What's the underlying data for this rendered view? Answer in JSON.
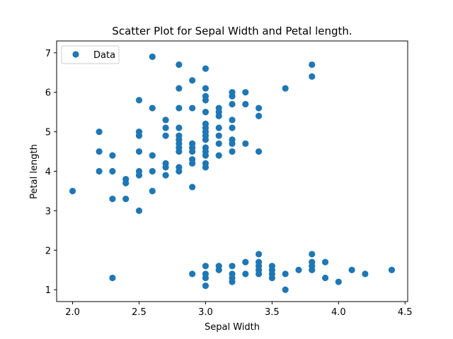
{
  "chart_data": {
    "type": "scatter",
    "title": "Scatter Plot for Sepal Width and Petal length.",
    "xlabel": "Sepal Width",
    "ylabel": "Petal length",
    "xlim": [
      1.88,
      4.52
    ],
    "ylim": [
      0.7,
      7.3
    ],
    "xticks": [
      2.0,
      2.5,
      3.0,
      3.5,
      4.0,
      4.5
    ],
    "xtick_labels": [
      "2.0",
      "2.5",
      "3.0",
      "3.5",
      "4.0",
      "4.5"
    ],
    "yticks": [
      1,
      2,
      3,
      4,
      5,
      6,
      7
    ],
    "ytick_labels": [
      "1",
      "2",
      "3",
      "4",
      "5",
      "6",
      "7"
    ],
    "grid": false,
    "legend": {
      "position": "top-left",
      "entries": [
        "Data"
      ]
    },
    "marker_color": "#1f77b4",
    "series": [
      {
        "name": "Data",
        "points": [
          [
            2.0,
            3.5
          ],
          [
            2.2,
            5.0
          ],
          [
            2.2,
            4.5
          ],
          [
            2.2,
            4.0
          ],
          [
            2.3,
            4.4
          ],
          [
            2.3,
            4.0
          ],
          [
            2.3,
            3.3
          ],
          [
            2.3,
            1.3
          ],
          [
            2.4,
            3.8
          ],
          [
            2.4,
            3.7
          ],
          [
            2.4,
            3.3
          ],
          [
            2.5,
            5.8
          ],
          [
            2.5,
            5.0
          ],
          [
            2.5,
            4.9
          ],
          [
            2.5,
            4.5
          ],
          [
            2.5,
            4.0
          ],
          [
            2.5,
            3.9
          ],
          [
            2.5,
            3.0
          ],
          [
            2.6,
            6.9
          ],
          [
            2.6,
            5.6
          ],
          [
            2.6,
            4.4
          ],
          [
            2.6,
            4.0
          ],
          [
            2.6,
            3.5
          ],
          [
            2.7,
            5.3
          ],
          [
            2.7,
            5.1
          ],
          [
            2.7,
            4.9
          ],
          [
            2.7,
            4.2
          ],
          [
            2.7,
            4.1
          ],
          [
            2.7,
            3.9
          ],
          [
            2.8,
            6.7
          ],
          [
            2.8,
            6.1
          ],
          [
            2.8,
            5.6
          ],
          [
            2.8,
            5.1
          ],
          [
            2.8,
            4.9
          ],
          [
            2.8,
            4.8
          ],
          [
            2.8,
            4.7
          ],
          [
            2.8,
            4.6
          ],
          [
            2.8,
            4.5
          ],
          [
            2.8,
            4.1
          ],
          [
            2.8,
            4.0
          ],
          [
            2.9,
            6.3
          ],
          [
            2.9,
            5.6
          ],
          [
            2.9,
            4.7
          ],
          [
            2.9,
            4.6
          ],
          [
            2.9,
            4.5
          ],
          [
            2.9,
            4.3
          ],
          [
            2.9,
            4.2
          ],
          [
            2.9,
            3.6
          ],
          [
            2.9,
            1.4
          ],
          [
            3.0,
            6.6
          ],
          [
            3.0,
            6.1
          ],
          [
            3.0,
            5.9
          ],
          [
            3.0,
            5.8
          ],
          [
            3.0,
            5.5
          ],
          [
            3.0,
            5.2
          ],
          [
            3.0,
            5.1
          ],
          [
            3.0,
            5.0
          ],
          [
            3.0,
            4.9
          ],
          [
            3.0,
            4.8
          ],
          [
            3.0,
            4.6
          ],
          [
            3.0,
            4.5
          ],
          [
            3.0,
            4.4
          ],
          [
            3.0,
            4.2
          ],
          [
            3.0,
            4.1
          ],
          [
            3.0,
            1.6
          ],
          [
            3.0,
            1.4
          ],
          [
            3.0,
            1.3
          ],
          [
            3.0,
            1.1
          ],
          [
            3.1,
            5.6
          ],
          [
            3.1,
            5.5
          ],
          [
            3.1,
            5.4
          ],
          [
            3.1,
            5.1
          ],
          [
            3.1,
            4.9
          ],
          [
            3.1,
            4.7
          ],
          [
            3.1,
            4.4
          ],
          [
            3.1,
            1.6
          ],
          [
            3.1,
            1.5
          ],
          [
            3.2,
            6.0
          ],
          [
            3.2,
            5.9
          ],
          [
            3.2,
            5.7
          ],
          [
            3.2,
            5.3
          ],
          [
            3.2,
            5.1
          ],
          [
            3.2,
            4.8
          ],
          [
            3.2,
            4.7
          ],
          [
            3.2,
            4.5
          ],
          [
            3.2,
            1.6
          ],
          [
            3.2,
            1.4
          ],
          [
            3.2,
            1.3
          ],
          [
            3.2,
            1.2
          ],
          [
            3.3,
            6.0
          ],
          [
            3.3,
            5.7
          ],
          [
            3.3,
            4.7
          ],
          [
            3.3,
            1.7
          ],
          [
            3.3,
            1.4
          ],
          [
            3.4,
            5.6
          ],
          [
            3.4,
            5.4
          ],
          [
            3.4,
            4.5
          ],
          [
            3.4,
            1.9
          ],
          [
            3.4,
            1.7
          ],
          [
            3.4,
            1.6
          ],
          [
            3.4,
            1.5
          ],
          [
            3.4,
            1.4
          ],
          [
            3.5,
            1.6
          ],
          [
            3.5,
            1.5
          ],
          [
            3.5,
            1.4
          ],
          [
            3.5,
            1.3
          ],
          [
            3.6,
            6.1
          ],
          [
            3.6,
            1.4
          ],
          [
            3.6,
            1.0
          ],
          [
            3.7,
            1.5
          ],
          [
            3.8,
            6.7
          ],
          [
            3.8,
            6.4
          ],
          [
            3.8,
            1.9
          ],
          [
            3.8,
            1.7
          ],
          [
            3.8,
            1.6
          ],
          [
            3.8,
            1.5
          ],
          [
            3.9,
            1.7
          ],
          [
            3.9,
            1.3
          ],
          [
            4.0,
            1.2
          ],
          [
            4.1,
            1.5
          ],
          [
            4.2,
            1.4
          ],
          [
            4.4,
            1.5
          ]
        ]
      }
    ]
  }
}
